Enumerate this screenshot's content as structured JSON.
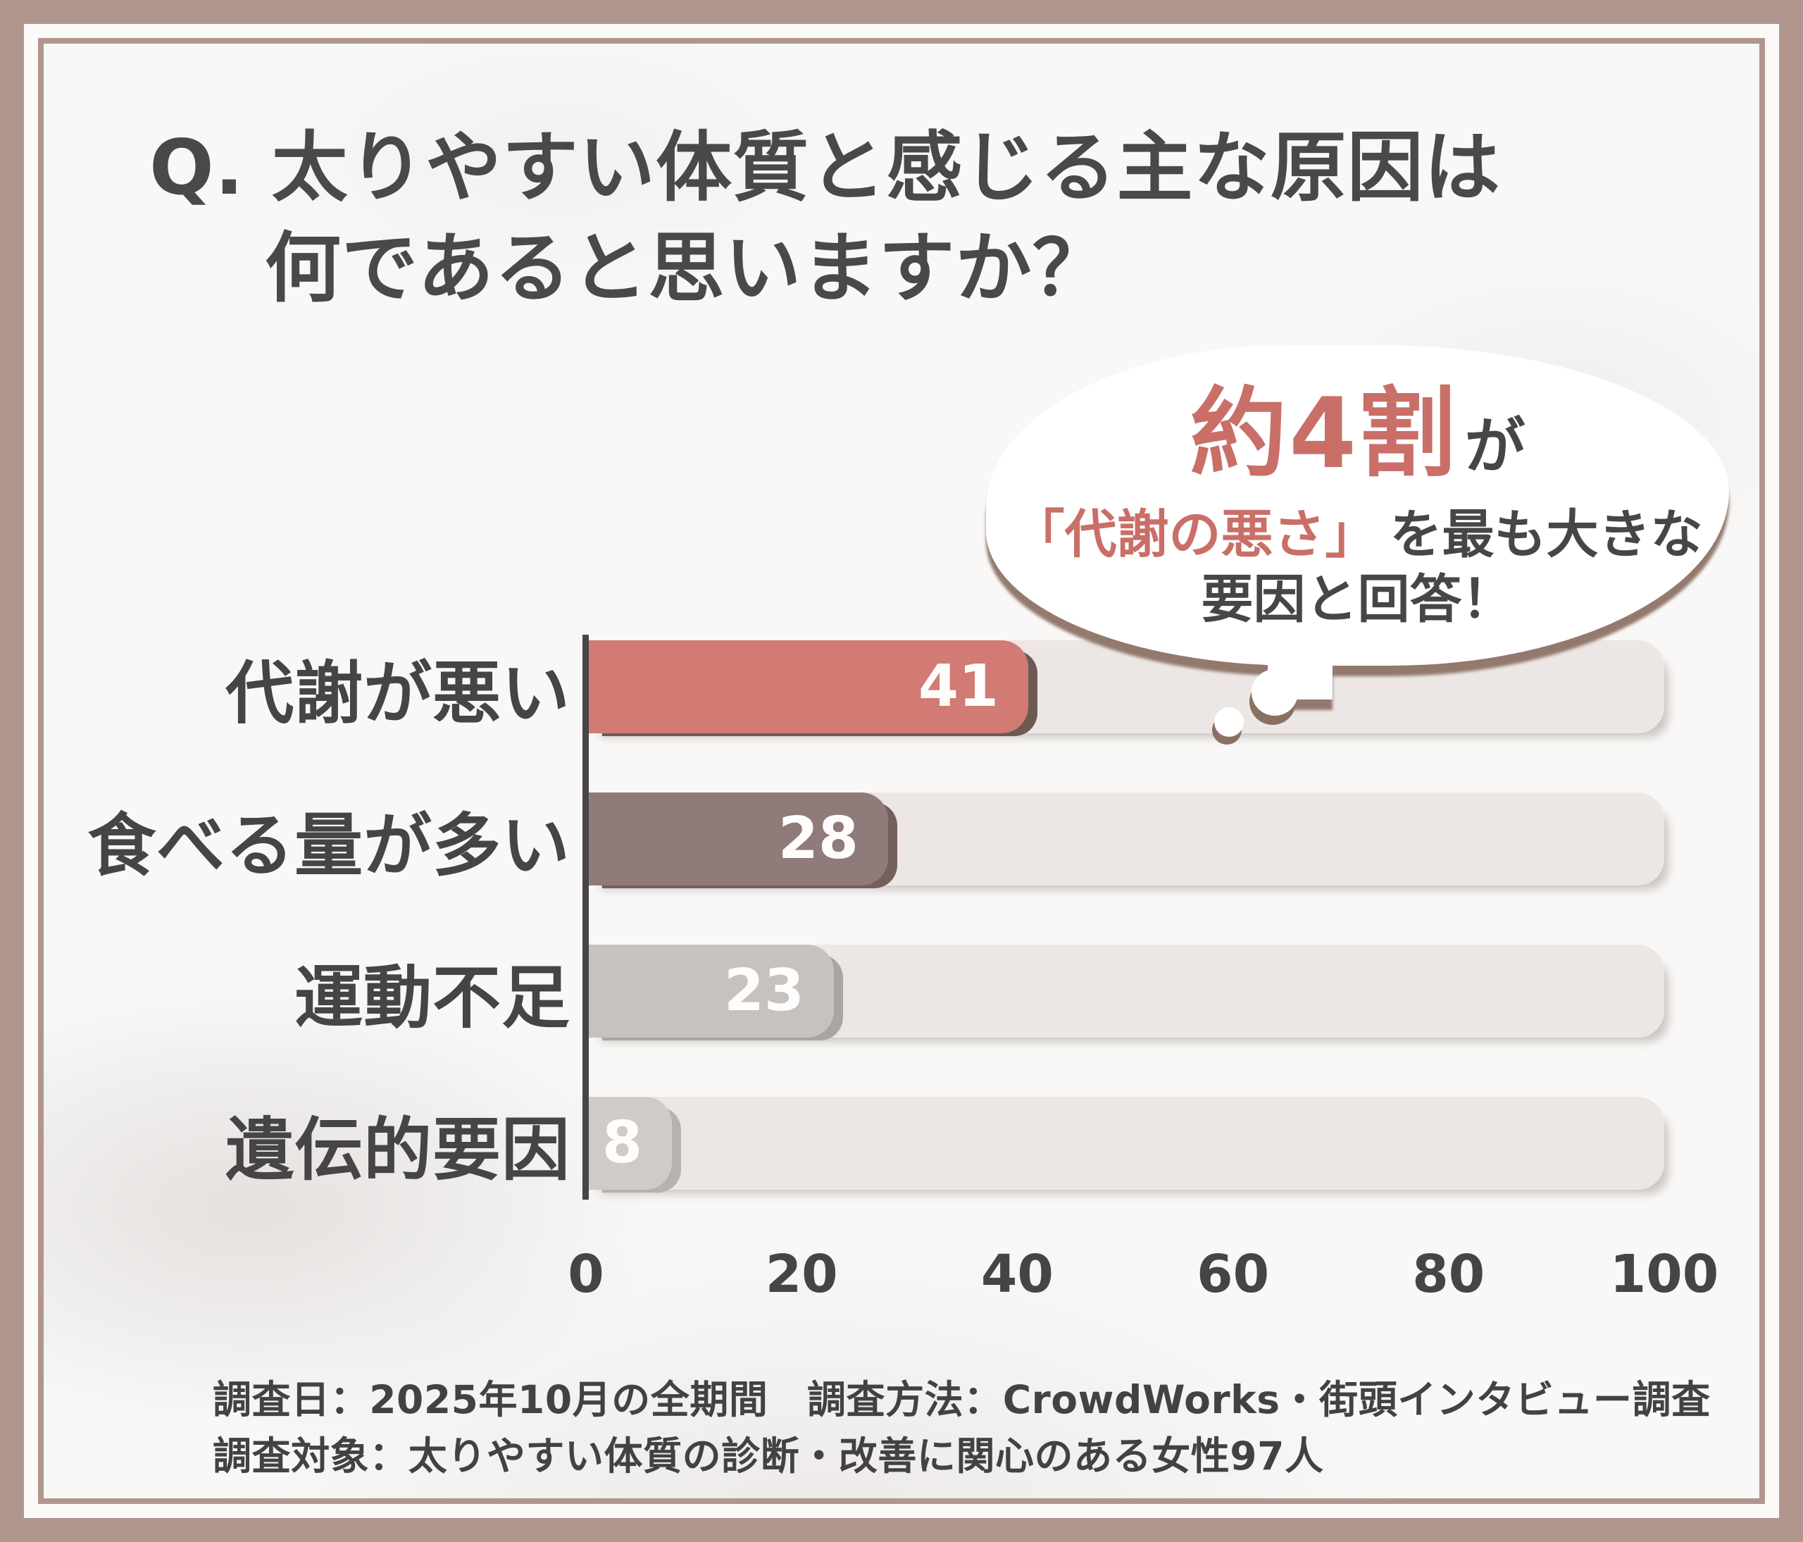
{
  "title": {
    "line1": "Q. 太りやすい体質と感じる主な原因は",
    "line2": "何であると思いますか？"
  },
  "callout": {
    "highlight": "約4割",
    "suffix": "が",
    "line2_highlight": "「代謝の悪さ」",
    "line2_rest": "を最も大きな",
    "line3": "要因と回答！"
  },
  "chart_data": {
    "type": "bar",
    "orientation": "horizontal",
    "title": "太りやすい体質と感じる主な原因",
    "categories": [
      "代謝が悪い",
      "食べる量が多い",
      "運動不足",
      "遺伝的要因"
    ],
    "values": [
      41,
      28,
      23,
      8
    ],
    "xlim": [
      0,
      100
    ],
    "x_ticks": [
      "0",
      "20",
      "40",
      "60",
      "80",
      "100"
    ],
    "grid": false,
    "value_label_position": "inside-end",
    "bar_colors": [
      "#d17b74",
      "#8f7b79",
      "#c5c2c0",
      "#cecbc9"
    ],
    "bar_shadow_colors": [
      "#6d5a52",
      "#74605b",
      "#a8a5a3",
      "#b5b2b0"
    ],
    "track_color": "#ece7e4"
  },
  "colors": {
    "frame": "#b1968e",
    "accent_pink": "#c96f68",
    "text_dark": "#474545",
    "bubble_shadow": "#8a6f63",
    "axis": "#474545"
  },
  "footer": {
    "line1": "調査日：2025年10月の全期間　調査方法：CrowdWorks・街頭インタビュー調査",
    "line2": "調査対象：太りやすい体質の診断・改善に関心のある女性97人"
  }
}
